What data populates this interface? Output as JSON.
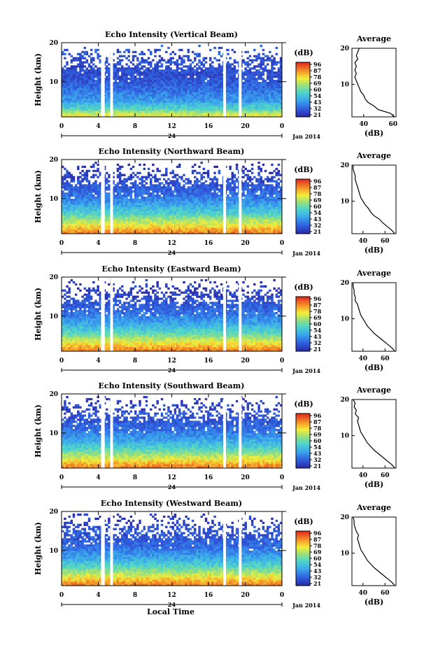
{
  "figure": {
    "xlabel": "Local Time",
    "date_label": "Jan 2014",
    "day_label": "24",
    "avg_title": "Average",
    "cbar_unit": "(dB)",
    "avg_xlabel": "(dB)",
    "ylabel": "Height (km)"
  },
  "chart_data": [
    {
      "type": "heatmap",
      "title": "Echo Intensity (Vertical Beam)",
      "ylabel": "Height (km)",
      "xlabel": "Local Time",
      "x_ticks": [
        "0",
        "4",
        "8",
        "12",
        "16",
        "20",
        "0"
      ],
      "y_ticks": [
        "10",
        "20"
      ],
      "ylim": [
        1,
        20
      ],
      "xlim": [
        0,
        24
      ],
      "colorbar": {
        "label": "(dB)",
        "ticks": [
          "96",
          "87",
          "78",
          "69",
          "60",
          "54",
          "43",
          "32",
          "21"
        ],
        "range": [
          21,
          96
        ]
      },
      "data_gaps_hours": [
        [
          4.3,
          4.7
        ],
        [
          5.3,
          5.6
        ],
        [
          17.6,
          17.9
        ],
        [
          19.3,
          19.6
        ]
      ],
      "average_profile": {
        "title": "Average",
        "xlabel": "(dB)",
        "x_ticks": [
          "40",
          "60"
        ],
        "xlim": [
          32,
          62
        ],
        "y_ticks": [
          "10",
          "20"
        ],
        "points": [
          [
            61,
            1
          ],
          [
            58,
            2
          ],
          [
            50,
            3
          ],
          [
            47,
            4
          ],
          [
            43,
            5
          ],
          [
            41,
            6
          ],
          [
            40,
            7
          ],
          [
            38,
            8
          ],
          [
            37,
            9
          ],
          [
            36,
            10
          ],
          [
            35,
            11
          ],
          [
            34,
            12
          ],
          [
            35,
            13
          ],
          [
            34,
            14
          ],
          [
            35,
            15
          ],
          [
            34,
            16
          ],
          [
            36,
            17
          ],
          [
            35,
            18
          ],
          [
            36,
            19
          ],
          [
            37,
            20
          ]
        ]
      }
    },
    {
      "type": "heatmap",
      "title": "Echo Intensity (Northward Beam)",
      "ylabel": "Height (km)",
      "xlabel": "Local Time",
      "x_ticks": [
        "0",
        "4",
        "8",
        "12",
        "16",
        "20",
        "0"
      ],
      "y_ticks": [
        "10",
        "20"
      ],
      "ylim": [
        1,
        20
      ],
      "xlim": [
        0,
        24
      ],
      "colorbar": {
        "label": "(dB)",
        "ticks": [
          "96",
          "87",
          "78",
          "69",
          "60",
          "54",
          "43",
          "32",
          "21"
        ],
        "range": [
          21,
          96
        ]
      },
      "data_gaps_hours": [
        [
          4.3,
          4.7
        ],
        [
          5.3,
          5.6
        ],
        [
          17.6,
          17.9
        ],
        [
          19.3,
          19.6
        ]
      ],
      "average_profile": {
        "title": "Average",
        "xlabel": "(dB)",
        "x_ticks": [
          "40",
          "60"
        ],
        "xlim": [
          30,
          70
        ],
        "y_ticks": [
          "10",
          "20"
        ],
        "points": [
          [
            69,
            1
          ],
          [
            66,
            2
          ],
          [
            62,
            3
          ],
          [
            58,
            4
          ],
          [
            55,
            5
          ],
          [
            50,
            6
          ],
          [
            47,
            7
          ],
          [
            45,
            8
          ],
          [
            42,
            9
          ],
          [
            40,
            10
          ],
          [
            38,
            11
          ],
          [
            37,
            12
          ],
          [
            36,
            13
          ],
          [
            35,
            14
          ],
          [
            34,
            15
          ],
          [
            33,
            16
          ],
          [
            33,
            17
          ],
          [
            32,
            18
          ],
          [
            31,
            19
          ],
          [
            31,
            20
          ]
        ]
      }
    },
    {
      "type": "heatmap",
      "title": "Echo Intensity (Eastward Beam)",
      "ylabel": "Height (km)",
      "xlabel": "Local Time",
      "x_ticks": [
        "0",
        "4",
        "8",
        "12",
        "16",
        "20",
        "0"
      ],
      "y_ticks": [
        "10",
        "20"
      ],
      "ylim": [
        1,
        20
      ],
      "xlim": [
        0,
        24
      ],
      "colorbar": {
        "label": "(dB)",
        "ticks": [
          "96",
          "87",
          "78",
          "69",
          "60",
          "54",
          "43",
          "32",
          "21"
        ],
        "range": [
          21,
          96
        ]
      },
      "data_gaps_hours": [
        [
          4.3,
          4.7
        ],
        [
          5.3,
          5.6
        ],
        [
          17.6,
          17.9
        ],
        [
          19.3,
          19.6
        ]
      ],
      "average_profile": {
        "title": "Average",
        "xlabel": "(dB)",
        "x_ticks": [
          "40",
          "60"
        ],
        "xlim": [
          30,
          70
        ],
        "y_ticks": [
          "10",
          "20"
        ],
        "points": [
          [
            69,
            1
          ],
          [
            66,
            2
          ],
          [
            62,
            3
          ],
          [
            58,
            4
          ],
          [
            54,
            5
          ],
          [
            50,
            6
          ],
          [
            47,
            7
          ],
          [
            44,
            8
          ],
          [
            42,
            9
          ],
          [
            40,
            10
          ],
          [
            38,
            11
          ],
          [
            37,
            12
          ],
          [
            36,
            13
          ],
          [
            35,
            14
          ],
          [
            33,
            15
          ],
          [
            33,
            16
          ],
          [
            32,
            17
          ],
          [
            32,
            18
          ],
          [
            31,
            19
          ],
          [
            31,
            20
          ]
        ]
      }
    },
    {
      "type": "heatmap",
      "title": "Echo Intensity (Southward Beam)",
      "ylabel": "Height (km)",
      "xlabel": "Local Time",
      "x_ticks": [
        "0",
        "4",
        "8",
        "12",
        "16",
        "20",
        "0"
      ],
      "y_ticks": [
        "10",
        "20"
      ],
      "ylim": [
        1,
        20
      ],
      "xlim": [
        0,
        24
      ],
      "colorbar": {
        "label": "(dB)",
        "ticks": [
          "96",
          "87",
          "78",
          "69",
          "60",
          "54",
          "43",
          "32",
          "21"
        ],
        "range": [
          21,
          96
        ]
      },
      "data_gaps_hours": [
        [
          4.3,
          4.7
        ],
        [
          5.3,
          5.6
        ],
        [
          17.6,
          17.9
        ],
        [
          19.3,
          19.6
        ]
      ],
      "average_profile": {
        "title": "Average",
        "xlabel": "(dB)",
        "x_ticks": [
          "40",
          "60"
        ],
        "xlim": [
          30,
          70
        ],
        "y_ticks": [
          "10",
          "20"
        ],
        "points": [
          [
            69,
            1
          ],
          [
            66,
            2
          ],
          [
            62,
            3
          ],
          [
            58,
            4
          ],
          [
            54,
            5
          ],
          [
            50,
            6
          ],
          [
            47,
            7
          ],
          [
            44,
            8
          ],
          [
            42,
            9
          ],
          [
            40,
            10
          ],
          [
            38,
            11
          ],
          [
            37,
            12
          ],
          [
            36,
            13
          ],
          [
            35,
            14
          ],
          [
            36,
            15
          ],
          [
            33,
            16
          ],
          [
            34,
            17
          ],
          [
            32,
            18
          ],
          [
            33,
            19
          ],
          [
            31,
            20
          ]
        ]
      }
    },
    {
      "type": "heatmap",
      "title": "Echo Intensity (Westward Beam)",
      "ylabel": "Height (km)",
      "xlabel": "Local Time",
      "x_ticks": [
        "0",
        "4",
        "8",
        "12",
        "16",
        "20",
        "0"
      ],
      "y_ticks": [
        "10",
        "20"
      ],
      "ylim": [
        1,
        20
      ],
      "xlim": [
        0,
        24
      ],
      "colorbar": {
        "label": "(dB)",
        "ticks": [
          "96",
          "87",
          "78",
          "69",
          "60",
          "54",
          "43",
          "32",
          "21"
        ],
        "range": [
          21,
          96
        ]
      },
      "data_gaps_hours": [
        [
          4.3,
          4.7
        ],
        [
          5.3,
          5.6
        ],
        [
          17.6,
          17.9
        ],
        [
          19.3,
          19.6
        ]
      ],
      "average_profile": {
        "title": "Average",
        "xlabel": "(dB)",
        "x_ticks": [
          "40",
          "60"
        ],
        "xlim": [
          30,
          70
        ],
        "y_ticks": [
          "10",
          "20"
        ],
        "points": [
          [
            69,
            1
          ],
          [
            66,
            2
          ],
          [
            62,
            3
          ],
          [
            58,
            4
          ],
          [
            54,
            5
          ],
          [
            50,
            6
          ],
          [
            47,
            7
          ],
          [
            44,
            8
          ],
          [
            42,
            9
          ],
          [
            40,
            10
          ],
          [
            38,
            11
          ],
          [
            37,
            12
          ],
          [
            36,
            13
          ],
          [
            35,
            14
          ],
          [
            36,
            15
          ],
          [
            34,
            16
          ],
          [
            33,
            17
          ],
          [
            32,
            18
          ],
          [
            32,
            19
          ],
          [
            31,
            20
          ]
        ]
      }
    }
  ]
}
